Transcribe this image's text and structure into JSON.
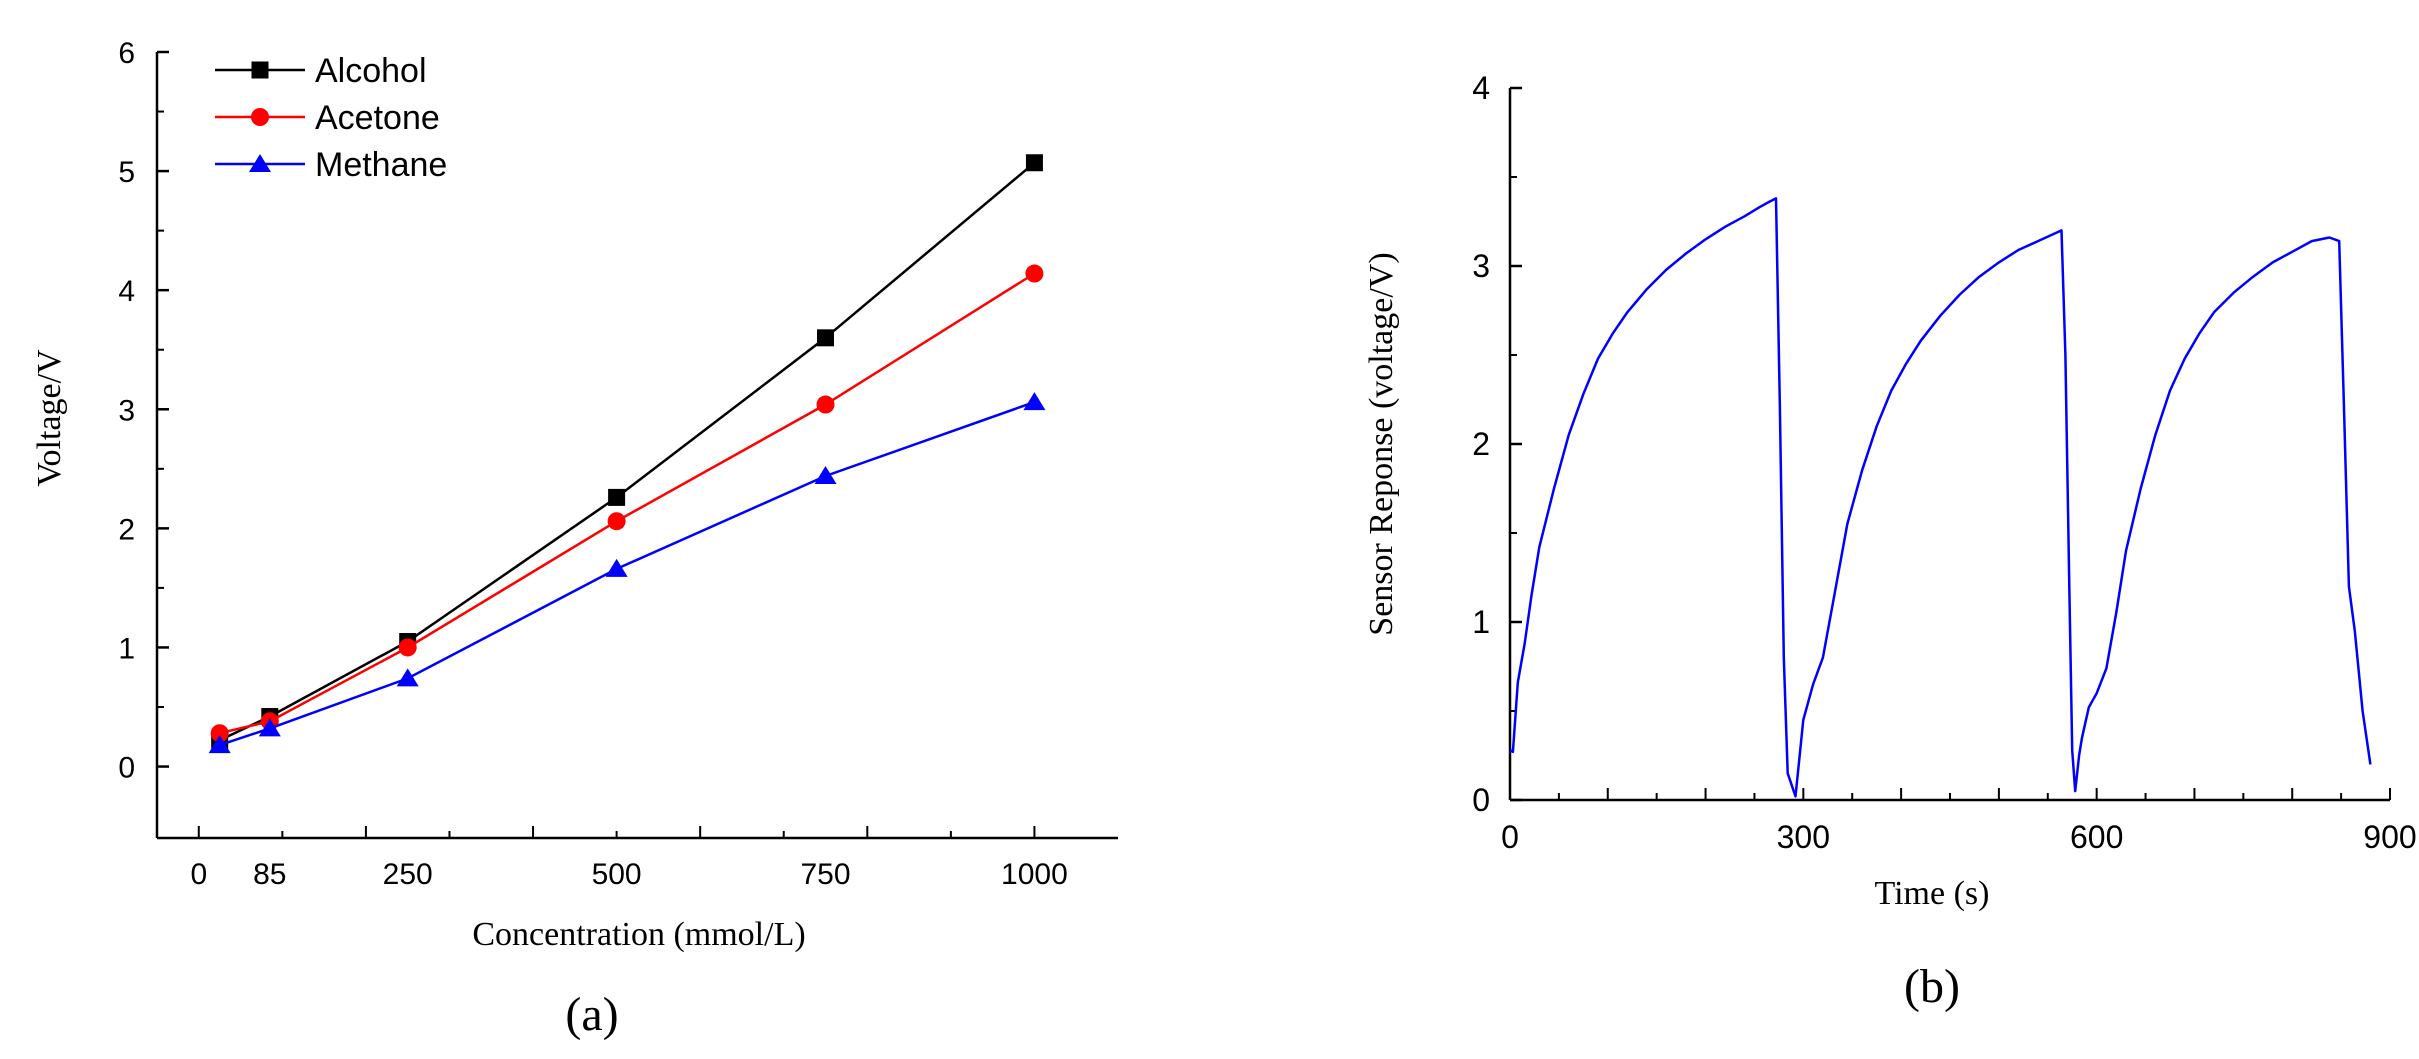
{
  "chart_data": [
    {
      "panel": "(a)",
      "type": "line",
      "xlabel": "Concentration (mmol/L)",
      "ylabel": "Voltage/V",
      "x": [
        25,
        85,
        250,
        500,
        750,
        1000
      ],
      "xticks": [
        0,
        85,
        250,
        500,
        750,
        1000
      ],
      "xlim": [
        -50,
        1100
      ],
      "yticks": [
        0,
        1,
        2,
        3,
        4,
        5,
        6
      ],
      "ylim": [
        -0.6,
        6
      ],
      "series": [
        {
          "name": "Alcohol",
          "color": "#000000",
          "marker": "square",
          "values": [
            0.22,
            0.42,
            1.05,
            2.26,
            3.6,
            5.07
          ]
        },
        {
          "name": "Acetone",
          "color": "#ff0000",
          "marker": "circle",
          "values": [
            0.28,
            0.38,
            1.0,
            2.06,
            3.04,
            4.14
          ]
        },
        {
          "name": "Methane",
          "color": "#0000ff",
          "marker": "triangle",
          "values": [
            0.18,
            0.32,
            0.74,
            1.66,
            2.44,
            3.06
          ]
        }
      ],
      "legend": "top-left"
    },
    {
      "panel": "(b)",
      "type": "line",
      "xlabel": "Time (s)",
      "ylabel": "Sensor Reponse (voltage/V)",
      "xticks": [
        0,
        300,
        600,
        900
      ],
      "xlim": [
        0,
        900
      ],
      "yticks": [
        0,
        1,
        2,
        3,
        4
      ],
      "ylim": [
        0,
        4
      ],
      "series": [
        {
          "name": "Sensor response",
          "color": "#0000ff",
          "x": [
            0,
            3,
            8,
            15,
            22,
            30,
            45,
            60,
            75,
            90,
            105,
            120,
            140,
            160,
            180,
            200,
            220,
            240,
            255,
            265,
            272,
            276,
            280,
            284,
            292,
            300,
            310,
            320,
            330,
            345,
            360,
            375,
            390,
            405,
            420,
            440,
            460,
            480,
            500,
            520,
            540,
            556,
            564,
            568,
            572,
            575,
            578,
            582,
            585,
            592,
            600,
            610,
            620,
            630,
            645,
            660,
            675,
            690,
            705,
            720,
            740,
            760,
            780,
            800,
            820,
            838,
            848,
            853,
            858,
            864,
            872,
            880
          ],
          "values": [
            0.28,
            0.27,
            0.66,
            0.88,
            1.15,
            1.42,
            1.75,
            2.05,
            2.28,
            2.48,
            2.62,
            2.74,
            2.87,
            2.98,
            3.07,
            3.15,
            3.22,
            3.28,
            3.33,
            3.36,
            3.38,
            2.2,
            0.8,
            0.15,
            0.02,
            0.45,
            0.65,
            0.8,
            1.1,
            1.55,
            1.85,
            2.1,
            2.3,
            2.45,
            2.58,
            2.72,
            2.84,
            2.94,
            3.02,
            3.09,
            3.14,
            3.18,
            3.2,
            2.5,
            1.2,
            0.28,
            0.05,
            0.25,
            0.35,
            0.52,
            0.6,
            0.74,
            1.05,
            1.4,
            1.75,
            2.05,
            2.3,
            2.48,
            2.62,
            2.74,
            2.85,
            2.94,
            3.02,
            3.08,
            3.14,
            3.16,
            3.14,
            2.2,
            1.2,
            0.95,
            0.5,
            0.2
          ]
        }
      ]
    }
  ],
  "captions": [
    "(a)",
    "(b)"
  ]
}
